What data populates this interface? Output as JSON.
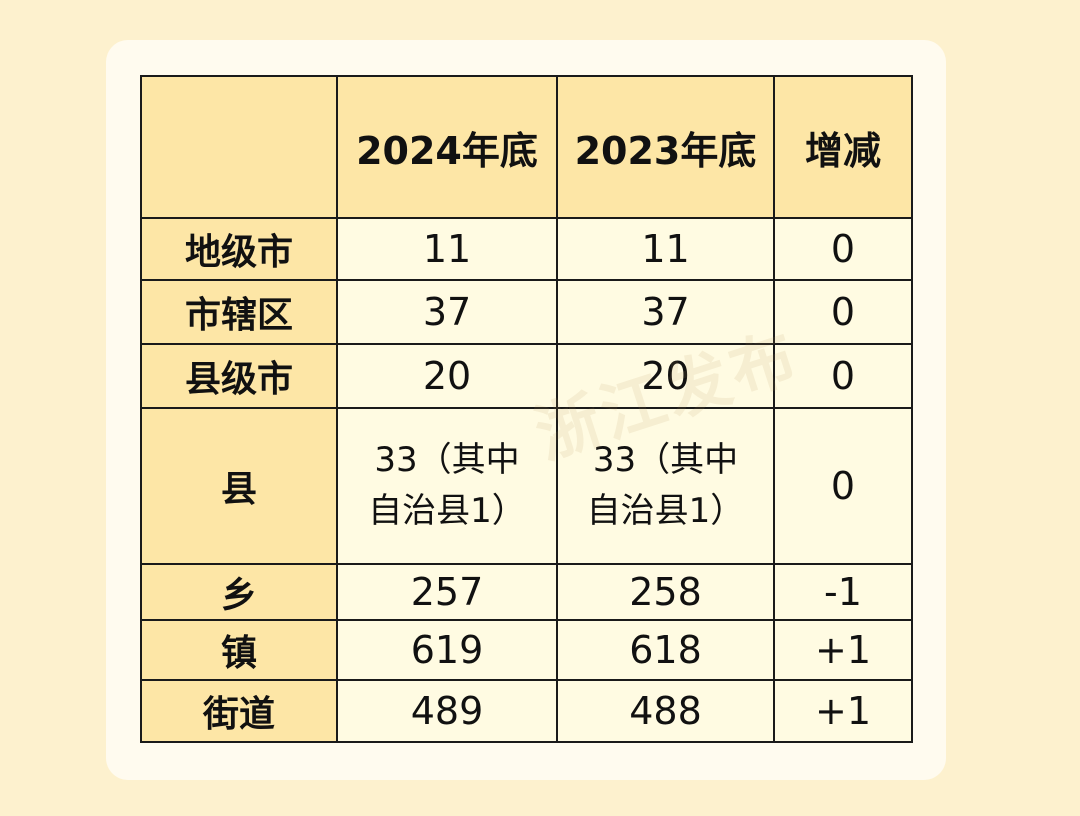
{
  "chart_data": {
    "type": "table",
    "columns": [
      "",
      "2024年底",
      "2023年底",
      "增减"
    ],
    "rows": [
      {
        "label": "地级市",
        "y2024": "11",
        "y2023": "11",
        "change": "0"
      },
      {
        "label": "市辖区",
        "y2024": "37",
        "y2023": "37",
        "change": "0"
      },
      {
        "label": "县级市",
        "y2024": "20",
        "y2023": "20",
        "change": "0"
      },
      {
        "label": "县",
        "y2024_line1": "33（其中",
        "y2024_line2": "自治县1）",
        "y2023_line1": "33（其中",
        "y2023_line2": "自治县1）",
        "change": "0"
      },
      {
        "label": "乡",
        "y2024": "257",
        "y2023": "258",
        "change": "-1"
      },
      {
        "label": "镇",
        "y2024": "619",
        "y2023": "618",
        "change": "+1"
      },
      {
        "label": "街道",
        "y2024": "489",
        "y2023": "488",
        "change": "+1"
      }
    ]
  },
  "watermark": "浙江发布",
  "colors": {
    "background": "#fdf1ce",
    "card": "#fffbef",
    "header_fill": "#fde6a6",
    "cell_fill": "#fffbe2",
    "border": "#1a1a1a"
  }
}
